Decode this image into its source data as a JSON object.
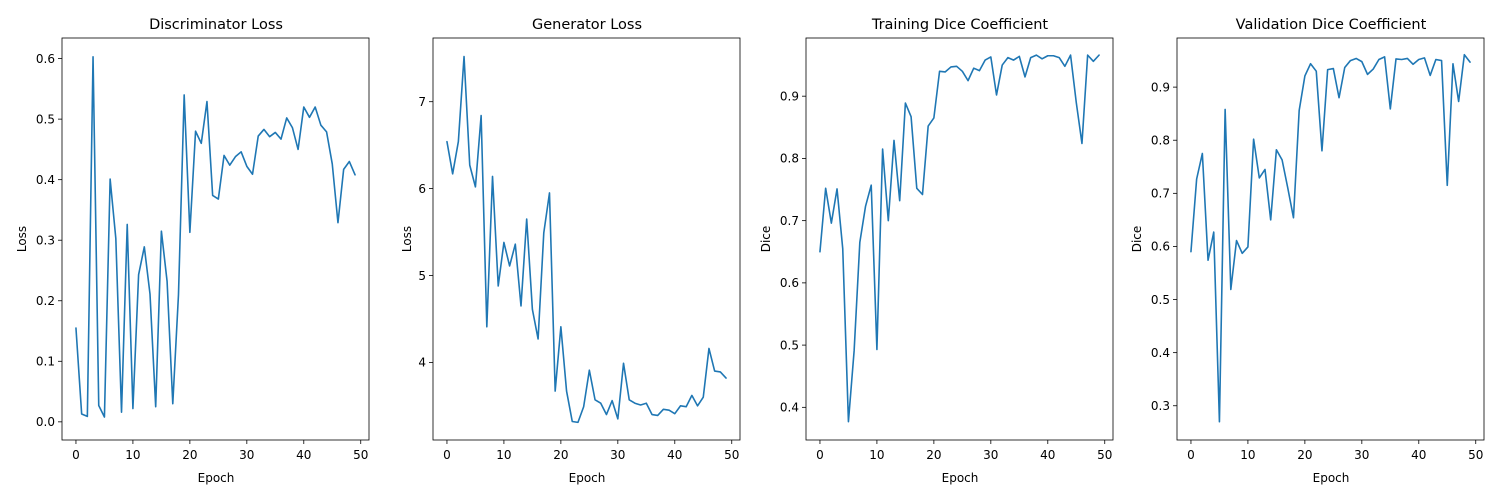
{
  "figure": {
    "background": "#ffffff"
  },
  "chart_data": [
    {
      "type": "line",
      "title": "Discriminator Loss",
      "xlabel": "Epoch",
      "ylabel": "Loss",
      "xlim": [
        -2.45,
        51.45
      ],
      "ylim": [
        -0.03,
        0.634
      ],
      "xticks": [
        0,
        10,
        20,
        30,
        40,
        50
      ],
      "yticks": [
        0.0,
        0.1,
        0.2,
        0.3,
        0.4,
        0.5,
        0.6
      ],
      "ytick_labels": [
        "0.0",
        "0.1",
        "0.2",
        "0.3",
        "0.4",
        "0.5",
        "0.6"
      ],
      "grid": false,
      "series": [
        {
          "color": "#1f77b4",
          "x": [
            0,
            1,
            2,
            3,
            4,
            5,
            6,
            7,
            8,
            9,
            10,
            11,
            12,
            13,
            14,
            15,
            16,
            17,
            18,
            19,
            20,
            21,
            22,
            23,
            24,
            25,
            26,
            27,
            28,
            29,
            30,
            31,
            32,
            33,
            34,
            35,
            36,
            37,
            38,
            39,
            40,
            41,
            42,
            43,
            44,
            45,
            46,
            47,
            48,
            49
          ],
          "values": [
            0.155,
            0.013,
            0.009,
            0.603,
            0.027,
            0.008,
            0.401,
            0.303,
            0.016,
            0.326,
            0.022,
            0.243,
            0.289,
            0.211,
            0.025,
            0.315,
            0.232,
            0.03,
            0.21,
            0.54,
            0.313,
            0.48,
            0.46,
            0.529,
            0.374,
            0.368,
            0.44,
            0.424,
            0.438,
            0.446,
            0.422,
            0.409,
            0.472,
            0.483,
            0.471,
            0.478,
            0.467,
            0.502,
            0.486,
            0.45,
            0.52,
            0.503,
            0.52,
            0.49,
            0.479,
            0.426,
            0.329,
            0.417,
            0.43,
            0.408
          ]
        }
      ]
    },
    {
      "type": "line",
      "title": "Generator Loss",
      "xlabel": "Epoch",
      "ylabel": "Loss",
      "xlim": [
        -2.45,
        51.45
      ],
      "ylim": [
        3.107,
        7.733
      ],
      "xticks": [
        0,
        10,
        20,
        30,
        40,
        50
      ],
      "yticks": [
        4,
        5,
        6,
        7
      ],
      "ytick_labels": [
        "4",
        "5",
        "6",
        "7"
      ],
      "grid": false,
      "series": [
        {
          "color": "#1f77b4",
          "x": [
            0,
            1,
            2,
            3,
            4,
            5,
            6,
            7,
            8,
            9,
            10,
            11,
            12,
            13,
            14,
            15,
            16,
            17,
            18,
            19,
            20,
            21,
            22,
            23,
            24,
            25,
            26,
            27,
            28,
            29,
            30,
            31,
            32,
            33,
            34,
            35,
            36,
            37,
            38,
            39,
            40,
            41,
            42,
            43,
            44,
            45,
            46,
            47,
            48,
            49
          ],
          "values": [
            6.54,
            6.17,
            6.54,
            7.52,
            6.27,
            6.02,
            6.84,
            4.41,
            6.14,
            4.88,
            5.38,
            5.11,
            5.36,
            4.65,
            5.65,
            4.61,
            4.27,
            5.49,
            5.95,
            3.67,
            4.41,
            3.67,
            3.32,
            3.31,
            3.49,
            3.91,
            3.57,
            3.53,
            3.4,
            3.56,
            3.35,
            3.99,
            3.57,
            3.53,
            3.51,
            3.53,
            3.4,
            3.39,
            3.46,
            3.45,
            3.41,
            3.5,
            3.49,
            3.62,
            3.5,
            3.6,
            4.16,
            3.9,
            3.89,
            3.82
          ]
        }
      ]
    },
    {
      "type": "line",
      "title": "Training Dice Coefficient",
      "xlabel": "Epoch",
      "ylabel": "Dice",
      "xlim": [
        -2.45,
        51.45
      ],
      "ylim": [
        0.3475,
        0.9935
      ],
      "xticks": [
        0,
        10,
        20,
        30,
        40,
        50
      ],
      "yticks": [
        0.4,
        0.5,
        0.6,
        0.7,
        0.8,
        0.9
      ],
      "ytick_labels": [
        "0.4",
        "0.5",
        "0.6",
        "0.7",
        "0.8",
        "0.9"
      ],
      "grid": false,
      "series": [
        {
          "color": "#1f77b4",
          "x": [
            0,
            1,
            2,
            3,
            4,
            5,
            6,
            7,
            8,
            9,
            10,
            11,
            12,
            13,
            14,
            15,
            16,
            17,
            18,
            19,
            20,
            21,
            22,
            23,
            24,
            25,
            26,
            27,
            28,
            29,
            30,
            31,
            32,
            33,
            34,
            35,
            36,
            37,
            38,
            39,
            40,
            41,
            42,
            43,
            44,
            45,
            46,
            47,
            48,
            49
          ],
          "values": [
            0.65,
            0.752,
            0.696,
            0.751,
            0.655,
            0.377,
            0.491,
            0.665,
            0.723,
            0.757,
            0.493,
            0.815,
            0.7,
            0.829,
            0.732,
            0.889,
            0.867,
            0.752,
            0.742,
            0.852,
            0.865,
            0.94,
            0.939,
            0.947,
            0.948,
            0.94,
            0.925,
            0.945,
            0.941,
            0.958,
            0.963,
            0.902,
            0.95,
            0.962,
            0.958,
            0.964,
            0.931,
            0.962,
            0.966,
            0.96,
            0.965,
            0.965,
            0.962,
            0.948,
            0.966,
            0.89,
            0.824,
            0.966,
            0.956,
            0.966
          ]
        }
      ]
    },
    {
      "type": "line",
      "title": "Validation Dice Coefficient",
      "xlabel": "Epoch",
      "ylabel": "Dice",
      "xlim": [
        -2.45,
        51.45
      ],
      "ylim": [
        0.2355,
        0.9925
      ],
      "xticks": [
        0,
        10,
        20,
        30,
        40,
        50
      ],
      "yticks": [
        0.3,
        0.4,
        0.5,
        0.6,
        0.7,
        0.8,
        0.9
      ],
      "ytick_labels": [
        "0.3",
        "0.4",
        "0.5",
        "0.6",
        "0.7",
        "0.8",
        "0.9"
      ],
      "grid": false,
      "series": [
        {
          "color": "#1f77b4",
          "x": [
            0,
            1,
            2,
            3,
            4,
            5,
            6,
            7,
            8,
            9,
            10,
            11,
            12,
            13,
            14,
            15,
            16,
            17,
            18,
            19,
            20,
            21,
            22,
            23,
            24,
            25,
            26,
            27,
            28,
            29,
            30,
            31,
            32,
            33,
            34,
            35,
            36,
            37,
            38,
            39,
            40,
            41,
            42,
            43,
            44,
            45,
            46,
            47,
            48,
            49
          ],
          "values": [
            0.59,
            0.727,
            0.775,
            0.574,
            0.627,
            0.27,
            0.858,
            0.519,
            0.611,
            0.587,
            0.599,
            0.802,
            0.729,
            0.745,
            0.65,
            0.782,
            0.763,
            0.71,
            0.654,
            0.856,
            0.921,
            0.944,
            0.93,
            0.78,
            0.933,
            0.935,
            0.88,
            0.937,
            0.95,
            0.954,
            0.948,
            0.924,
            0.934,
            0.952,
            0.957,
            0.859,
            0.953,
            0.952,
            0.954,
            0.943,
            0.952,
            0.955,
            0.922,
            0.952,
            0.95,
            0.715,
            0.944,
            0.873,
            0.961,
            0.947
          ]
        }
      ]
    }
  ]
}
